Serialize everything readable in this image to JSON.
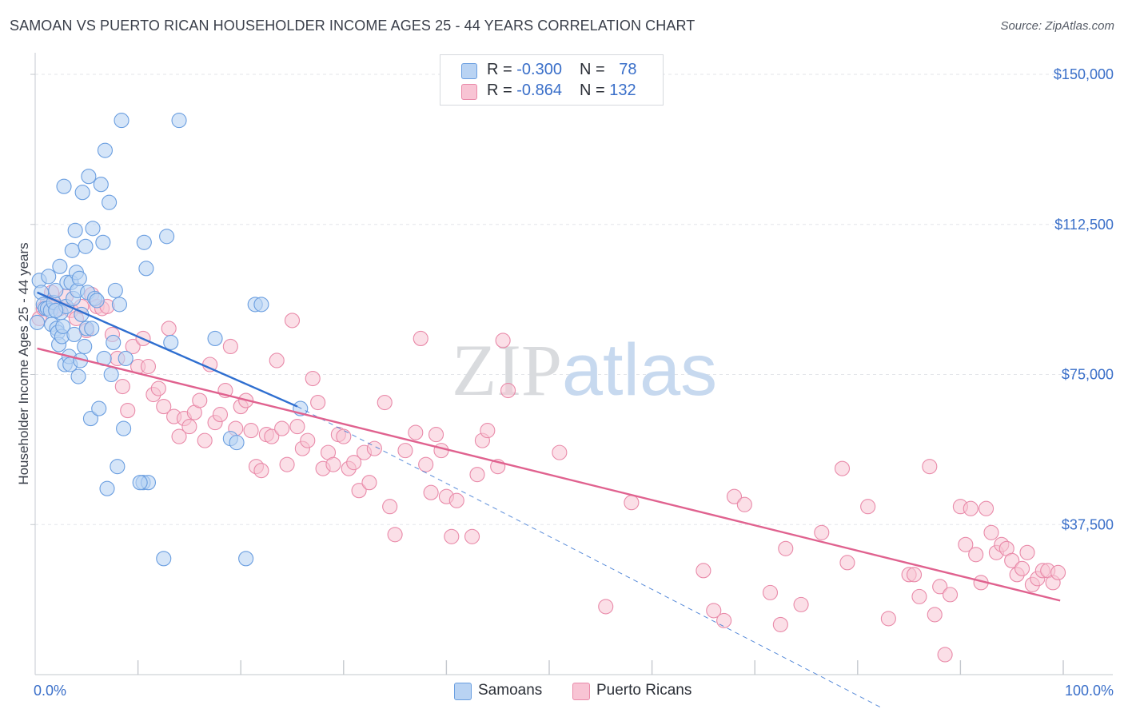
{
  "header": {
    "title": "SAMOAN VS PUERTO RICAN HOUSEHOLDER INCOME AGES 25 - 44 YEARS CORRELATION CHART",
    "source": "Source: ZipAtlas.com"
  },
  "watermark": {
    "zip": "ZIP",
    "atlas": "atlas"
  },
  "legend": {
    "samoans": {
      "r_label": "R = ",
      "r_value": "-0.300",
      "n_label": "N = ",
      "n_value": "78"
    },
    "puerto_ricans": {
      "r_label": "R = ",
      "r_value": "-0.864",
      "n_label": "N = ",
      "n_value": "132"
    }
  },
  "bottom_legend": {
    "samoans": "Samoans",
    "puerto_ricans": "Puerto Ricans"
  },
  "colors": {
    "samoans_fill": "#b9d3f3",
    "samoans_stroke": "#6a9ee0",
    "samoans_line": "#2f6fd0",
    "puerto_fill": "#f8c4d4",
    "puerto_stroke": "#e98aa9",
    "puerto_line": "#e0628f",
    "axis_text": "#3a6fc9",
    "grid": "#e3e6ea"
  },
  "chart_data": {
    "type": "scatter",
    "title": "SAMOAN VS PUERTO RICAN HOUSEHOLDER INCOME AGES 25 - 44 YEARS CORRELATION CHART",
    "xlabel": "",
    "ylabel": "Householder Income Ages 25 - 44 years",
    "xlim": [
      0,
      100
    ],
    "ylim": [
      0,
      153000
    ],
    "x_tick_labels": [
      "0.0%",
      "100.0%"
    ],
    "y_ticks": [
      37500,
      75000,
      112500,
      150000
    ],
    "y_tick_labels": [
      "$37,500",
      "$75,000",
      "$112,500",
      "$150,000"
    ],
    "grid": true,
    "series": [
      {
        "name": "Samoans",
        "trend": {
          "x": [
            0.2,
            25.5
          ],
          "y": [
            95500,
            67000
          ],
          "dashed_to": [
            82.5,
            -8500
          ]
        },
        "points": [
          [
            0.2,
            88000
          ],
          [
            0.4,
            98500
          ],
          [
            0.6,
            95500
          ],
          [
            0.8,
            92500
          ],
          [
            1.0,
            91500
          ],
          [
            1.2,
            91500
          ],
          [
            1.3,
            99500
          ],
          [
            1.5,
            91000
          ],
          [
            1.6,
            87500
          ],
          [
            1.8,
            93000
          ],
          [
            2.0,
            96000
          ],
          [
            2.1,
            86500
          ],
          [
            2.2,
            85500
          ],
          [
            2.3,
            82500
          ],
          [
            2.4,
            102000
          ],
          [
            2.5,
            90500
          ],
          [
            2.6,
            84500
          ],
          [
            2.7,
            87000
          ],
          [
            2.8,
            122000
          ],
          [
            2.9,
            77500
          ],
          [
            3.0,
            92000
          ],
          [
            3.1,
            98000
          ],
          [
            3.3,
            79500
          ],
          [
            3.4,
            77500
          ],
          [
            3.5,
            98000
          ],
          [
            3.6,
            106000
          ],
          [
            3.7,
            94000
          ],
          [
            3.8,
            85000
          ],
          [
            3.9,
            111000
          ],
          [
            4.0,
            100500
          ],
          [
            4.1,
            96000
          ],
          [
            4.2,
            74500
          ],
          [
            4.3,
            99000
          ],
          [
            4.4,
            78500
          ],
          [
            4.5,
            90000
          ],
          [
            4.6,
            120500
          ],
          [
            4.8,
            82000
          ],
          [
            4.9,
            107000
          ],
          [
            5.0,
            86500
          ],
          [
            5.1,
            95500
          ],
          [
            5.2,
            124500
          ],
          [
            5.4,
            64000
          ],
          [
            5.5,
            86500
          ],
          [
            5.6,
            111500
          ],
          [
            5.8,
            94000
          ],
          [
            6.0,
            93500
          ],
          [
            6.2,
            66500
          ],
          [
            6.4,
            122500
          ],
          [
            6.6,
            108000
          ],
          [
            6.7,
            79000
          ],
          [
            6.8,
            131000
          ],
          [
            7.0,
            46500
          ],
          [
            7.2,
            118000
          ],
          [
            7.4,
            75000
          ],
          [
            7.6,
            83000
          ],
          [
            7.8,
            96000
          ],
          [
            8.0,
            52000
          ],
          [
            8.2,
            92500
          ],
          [
            8.4,
            138500
          ],
          [
            8.6,
            61500
          ],
          [
            8.8,
            79000
          ],
          [
            10.5,
            48000
          ],
          [
            10.6,
            108000
          ],
          [
            10.8,
            101500
          ],
          [
            11.0,
            48000
          ],
          [
            12.5,
            29000
          ],
          [
            12.8,
            109500
          ],
          [
            13.2,
            83000
          ],
          [
            14.0,
            138500
          ],
          [
            17.5,
            84000
          ],
          [
            19.0,
            59000
          ],
          [
            19.6,
            58000
          ],
          [
            20.5,
            29000
          ],
          [
            21.4,
            92500
          ],
          [
            22.0,
            92500
          ],
          [
            25.8,
            66500
          ],
          [
            10.2,
            48000
          ],
          [
            2.0,
            91000
          ]
        ]
      },
      {
        "name": "Puerto Ricans",
        "trend": {
          "x": [
            0.2,
            99.7
          ],
          "y": [
            81500,
            18500
          ]
        },
        "points": [
          [
            0.4,
            89000
          ],
          [
            0.8,
            91500
          ],
          [
            1.2,
            93000
          ],
          [
            1.6,
            95500
          ],
          [
            2.0,
            92000
          ],
          [
            2.4,
            91500
          ],
          [
            3.0,
            94500
          ],
          [
            3.5,
            91000
          ],
          [
            4.0,
            89000
          ],
          [
            4.5,
            92000
          ],
          [
            5.0,
            86000
          ],
          [
            5.5,
            95000
          ],
          [
            6.0,
            92000
          ],
          [
            6.5,
            91500
          ],
          [
            7.0,
            92000
          ],
          [
            7.5,
            85000
          ],
          [
            8.0,
            79000
          ],
          [
            8.5,
            72000
          ],
          [
            9.0,
            66000
          ],
          [
            9.5,
            82000
          ],
          [
            10.0,
            77000
          ],
          [
            10.5,
            84000
          ],
          [
            11.0,
            77000
          ],
          [
            11.5,
            70000
          ],
          [
            12.0,
            71500
          ],
          [
            12.5,
            67000
          ],
          [
            13.0,
            86500
          ],
          [
            13.5,
            64500
          ],
          [
            14.0,
            59500
          ],
          [
            14.5,
            64000
          ],
          [
            15.0,
            62000
          ],
          [
            15.5,
            65500
          ],
          [
            16.0,
            68500
          ],
          [
            16.5,
            58500
          ],
          [
            17.0,
            77500
          ],
          [
            17.5,
            63000
          ],
          [
            18.0,
            65000
          ],
          [
            18.5,
            71000
          ],
          [
            19.0,
            82000
          ],
          [
            19.5,
            61500
          ],
          [
            20.0,
            67000
          ],
          [
            20.5,
            68500
          ],
          [
            21.0,
            61000
          ],
          [
            21.5,
            52000
          ],
          [
            22.0,
            51000
          ],
          [
            22.5,
            60000
          ],
          [
            23.0,
            59500
          ],
          [
            23.5,
            78500
          ],
          [
            24.0,
            61500
          ],
          [
            24.5,
            52500
          ],
          [
            25.0,
            88500
          ],
          [
            25.5,
            62000
          ],
          [
            26.0,
            56500
          ],
          [
            26.5,
            58500
          ],
          [
            27.0,
            74000
          ],
          [
            27.5,
            68000
          ],
          [
            28.0,
            51500
          ],
          [
            28.5,
            55500
          ],
          [
            29.0,
            52500
          ],
          [
            29.5,
            60000
          ],
          [
            30.0,
            59500
          ],
          [
            30.5,
            51500
          ],
          [
            31.0,
            53000
          ],
          [
            31.5,
            46000
          ],
          [
            32.0,
            55500
          ],
          [
            32.5,
            48000
          ],
          [
            33.0,
            56500
          ],
          [
            34.0,
            68000
          ],
          [
            34.5,
            42000
          ],
          [
            35.0,
            35000
          ],
          [
            36.0,
            56000
          ],
          [
            37.0,
            60500
          ],
          [
            37.5,
            84000
          ],
          [
            38.0,
            52500
          ],
          [
            38.5,
            45500
          ],
          [
            39.0,
            60000
          ],
          [
            39.5,
            56000
          ],
          [
            40.0,
            44500
          ],
          [
            40.5,
            34500
          ],
          [
            41.0,
            43500
          ],
          [
            42.5,
            34500
          ],
          [
            43.0,
            50000
          ],
          [
            43.5,
            58500
          ],
          [
            44.0,
            61000
          ],
          [
            45.0,
            52000
          ],
          [
            45.5,
            83500
          ],
          [
            46.0,
            71000
          ],
          [
            51.0,
            55500
          ],
          [
            55.5,
            17000
          ],
          [
            58.0,
            43000
          ],
          [
            65.0,
            26000
          ],
          [
            66.0,
            16000
          ],
          [
            67.0,
            13500
          ],
          [
            68.0,
            44500
          ],
          [
            69.0,
            42500
          ],
          [
            71.5,
            20500
          ],
          [
            72.5,
            12500
          ],
          [
            73.0,
            31500
          ],
          [
            74.5,
            17500
          ],
          [
            76.5,
            35500
          ],
          [
            78.5,
            51500
          ],
          [
            81.0,
            42000
          ],
          [
            83.0,
            14000
          ],
          [
            85.0,
            25000
          ],
          [
            85.5,
            25000
          ],
          [
            86.0,
            19500
          ],
          [
            87.0,
            52000
          ],
          [
            87.5,
            15000
          ],
          [
            88.0,
            22000
          ],
          [
            88.5,
            5000
          ],
          [
            89.0,
            20000
          ],
          [
            90.0,
            42000
          ],
          [
            90.5,
            32500
          ],
          [
            91.0,
            41500
          ],
          [
            91.5,
            30000
          ],
          [
            92.0,
            23000
          ],
          [
            92.5,
            41500
          ],
          [
            93.0,
            35500
          ],
          [
            93.5,
            30500
          ],
          [
            94.0,
            32500
          ],
          [
            94.5,
            31500
          ],
          [
            95.0,
            28500
          ],
          [
            95.5,
            25000
          ],
          [
            96.0,
            26500
          ],
          [
            96.5,
            30500
          ],
          [
            97.0,
            22500
          ],
          [
            97.5,
            24000
          ],
          [
            98.0,
            26000
          ],
          [
            98.5,
            26000
          ],
          [
            99.0,
            23000
          ],
          [
            99.5,
            25500
          ],
          [
            79.0,
            28000
          ]
        ]
      }
    ]
  }
}
